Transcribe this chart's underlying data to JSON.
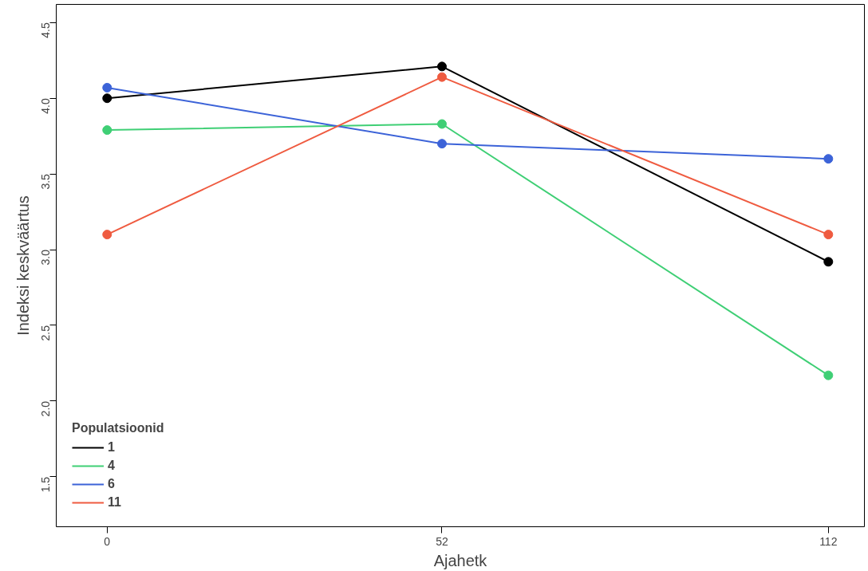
{
  "chart_data": {
    "type": "line",
    "xlabel": "Ajahetk",
    "ylabel": "Indeksi keskväärtus",
    "legend_title": "Populatsioonid",
    "x": [
      0,
      52,
      112
    ],
    "series": [
      {
        "name": "1",
        "color": "#000000",
        "values": [
          4.0,
          4.21,
          2.92
        ]
      },
      {
        "name": "4",
        "color": "#3fcf75",
        "values": [
          3.79,
          3.83,
          2.17
        ]
      },
      {
        "name": "6",
        "color": "#3c63d8",
        "values": [
          4.07,
          3.7,
          3.6
        ]
      },
      {
        "name": "11",
        "color": "#ef5b40",
        "values": [
          3.1,
          4.14,
          3.1
        ]
      }
    ],
    "xlim": [
      -7.9,
      117.6
    ],
    "ylim": [
      1.17,
      4.62
    ],
    "xticks": [
      0,
      52,
      112
    ],
    "yticks": [
      1.5,
      {
        "value": 2,
        "label": "2.0"
      },
      2.5,
      {
        "value": 3,
        "label": "3.0"
      },
      3.5,
      {
        "value": 4,
        "label": "4.0"
      },
      4.5
    ],
    "grid": false,
    "legend": "bottom left",
    "marker": "circle",
    "line_style": "solid"
  }
}
